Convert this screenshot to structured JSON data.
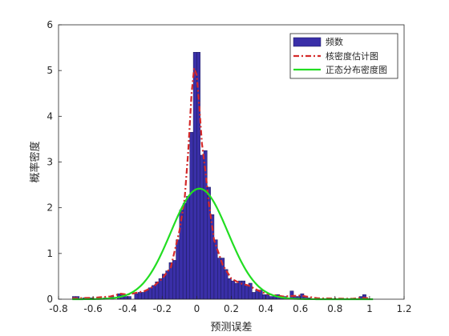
{
  "chart_data": {
    "type": "bar",
    "xlabel": "预测误差",
    "ylabel": "概率密度",
    "xlim": [
      -0.8,
      1.2
    ],
    "ylim": [
      0,
      6
    ],
    "x_ticks": [
      "-0.8",
      "-0.6",
      "-0.4",
      "-0.2",
      "0",
      "0.2",
      "0.4",
      "0.6",
      "0.8",
      "1",
      "1.2"
    ],
    "y_ticks": [
      "0",
      "1",
      "2",
      "3",
      "4",
      "5",
      "6"
    ],
    "grid": false,
    "legend_position": "top-right",
    "series": [
      {
        "name": "频数",
        "kind": "histogram",
        "color": "#3a2fa8",
        "edge": "#1a1a5a",
        "bin_width": 0.02,
        "bins": [
          [
            -0.72,
            0.06
          ],
          [
            -0.7,
            0.06
          ],
          [
            -0.66,
            0.03
          ],
          [
            -0.62,
            0.03
          ],
          [
            -0.58,
            0.03
          ],
          [
            -0.54,
            0.03
          ],
          [
            -0.5,
            0.06
          ],
          [
            -0.46,
            0.12
          ],
          [
            -0.44,
            0.12
          ],
          [
            -0.42,
            0.06
          ],
          [
            -0.4,
            0.06
          ],
          [
            -0.36,
            0.12
          ],
          [
            -0.34,
            0.15
          ],
          [
            -0.32,
            0.15
          ],
          [
            -0.3,
            0.2
          ],
          [
            -0.28,
            0.25
          ],
          [
            -0.26,
            0.3
          ],
          [
            -0.24,
            0.38
          ],
          [
            -0.22,
            0.45
          ],
          [
            -0.2,
            0.55
          ],
          [
            -0.18,
            0.62
          ],
          [
            -0.16,
            0.8
          ],
          [
            -0.14,
            0.85
          ],
          [
            -0.12,
            1.3
          ],
          [
            -0.1,
            1.95
          ],
          [
            -0.08,
            2.1
          ],
          [
            -0.06,
            2.25
          ],
          [
            -0.04,
            3.65
          ],
          [
            -0.02,
            5.4
          ],
          [
            0.0,
            5.4
          ],
          [
            0.02,
            3.15
          ],
          [
            0.04,
            3.25
          ],
          [
            0.06,
            2.45
          ],
          [
            0.08,
            1.85
          ],
          [
            0.1,
            1.3
          ],
          [
            0.12,
            0.9
          ],
          [
            0.14,
            0.9
          ],
          [
            0.16,
            0.65
          ],
          [
            0.18,
            0.45
          ],
          [
            0.2,
            0.4
          ],
          [
            0.22,
            0.35
          ],
          [
            0.24,
            0.4
          ],
          [
            0.26,
            0.4
          ],
          [
            0.28,
            0.3
          ],
          [
            0.3,
            0.35
          ],
          [
            0.32,
            0.15
          ],
          [
            0.34,
            0.2
          ],
          [
            0.36,
            0.2
          ],
          [
            0.38,
            0.1
          ],
          [
            0.4,
            0.1
          ],
          [
            0.42,
            0.06
          ],
          [
            0.44,
            0.06
          ],
          [
            0.46,
            0.1
          ],
          [
            0.48,
            0.06
          ],
          [
            0.5,
            0.06
          ],
          [
            0.52,
            0.03
          ],
          [
            0.54,
            0.18
          ],
          [
            0.56,
            0.06
          ],
          [
            0.58,
            0.06
          ],
          [
            0.6,
            0.12
          ],
          [
            0.62,
            0.06
          ],
          [
            0.64,
            0.03
          ],
          [
            0.94,
            0.06
          ],
          [
            0.96,
            0.1
          ]
        ]
      },
      {
        "name": "核密度估计图",
        "kind": "line",
        "style": "dash-dot",
        "color": "#d42a2a",
        "x": [
          -0.72,
          -0.6,
          -0.5,
          -0.44,
          -0.4,
          -0.3,
          -0.25,
          -0.2,
          -0.15,
          -0.1,
          -0.07,
          -0.05,
          -0.03,
          -0.015,
          0.0,
          0.015,
          0.03,
          0.05,
          0.07,
          0.1,
          0.15,
          0.2,
          0.25,
          0.3,
          0.35,
          0.4,
          0.5,
          0.6,
          0.65,
          0.7,
          0.9,
          0.95,
          1.0
        ],
        "y": [
          0.02,
          0.03,
          0.06,
          0.12,
          0.1,
          0.18,
          0.28,
          0.45,
          0.7,
          1.5,
          2.2,
          3.2,
          4.5,
          5.05,
          4.9,
          4.2,
          3.4,
          2.8,
          2.1,
          1.3,
          0.75,
          0.45,
          0.35,
          0.3,
          0.2,
          0.12,
          0.06,
          0.08,
          0.05,
          0.02,
          0.01,
          0.03,
          0.02
        ]
      },
      {
        "name": "正态分布密度图",
        "kind": "line",
        "style": "solid",
        "color": "#22dd22",
        "mean": 0.015,
        "std": 0.165,
        "x_range": [
          -0.72,
          1.02
        ]
      }
    ]
  }
}
